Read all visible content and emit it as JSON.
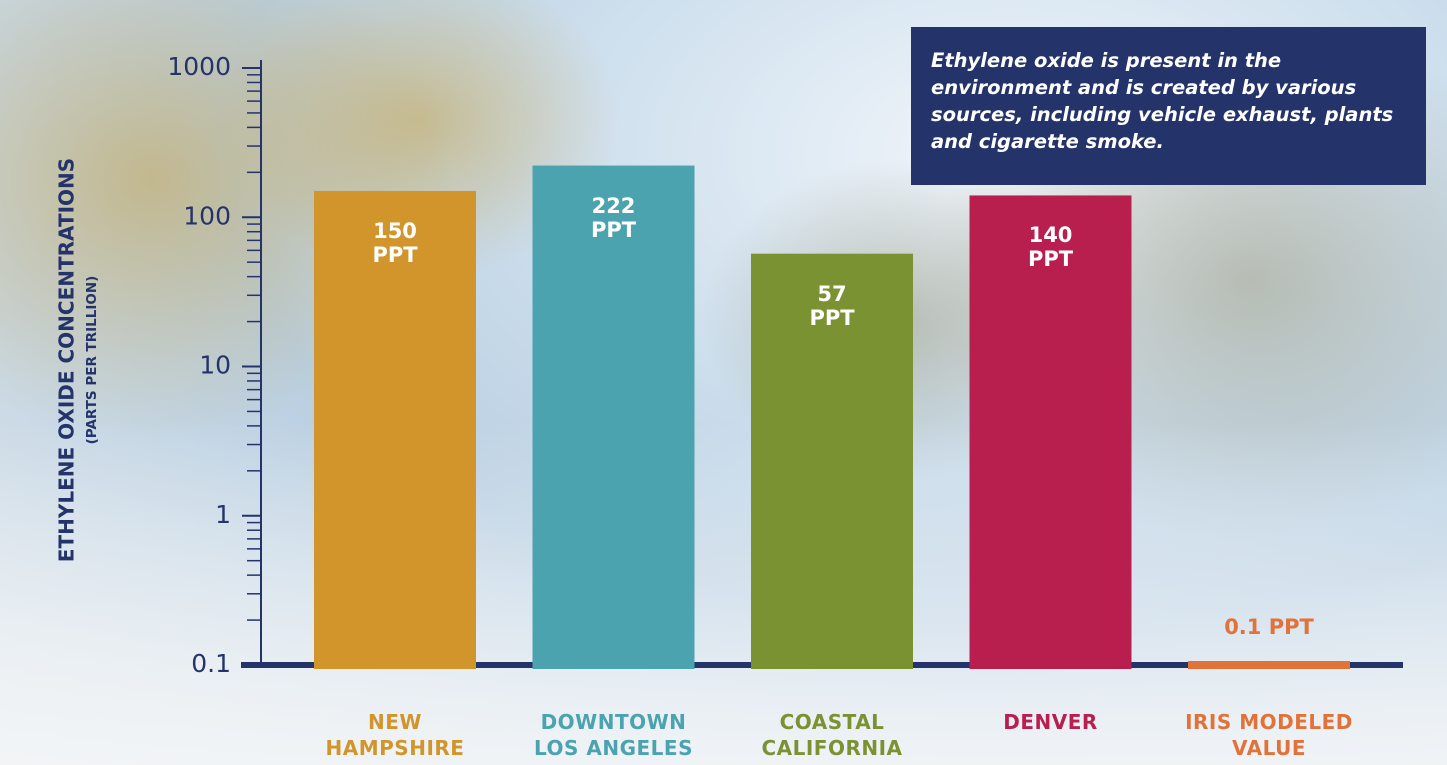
{
  "chart_data": {
    "type": "bar",
    "y_label": "ETHYLENE OXIDE CONCENTRATIONS",
    "y_sublabel": "(PARTS PER TRILLION)",
    "annotation": "Ethylene oxide is present in the environment and is created by various sources, including vehicle exhaust, plants and cigarette smoke.",
    "categories": [
      "NEW\nHAMPSHIRE",
      "DOWNTOWN\nLOS ANGELES",
      "COASTAL\nCALIFORNIA",
      "DENVER",
      "IRIS MODELED\nVALUE"
    ],
    "values": [
      150,
      222,
      57,
      140,
      0.1
    ],
    "value_labels": [
      "150\nPPT",
      "222\nPPT",
      "57\nPPT",
      "140\nPPT",
      "0.1 PPT"
    ],
    "colors": [
      "#d1952c",
      "#4ba3af",
      "#7a9232",
      "#b81f4f",
      "#e1733a"
    ],
    "log_scale": true,
    "ylim": [
      0.1,
      1000
    ],
    "yticks": [
      0.1,
      1,
      10,
      100,
      1000
    ],
    "minor_yticks": [
      0.2,
      0.3,
      0.4,
      0.5,
      0.6,
      0.7,
      0.8,
      0.9,
      2,
      3,
      4,
      5,
      6,
      7,
      8,
      9,
      20,
      30,
      40,
      50,
      60,
      70,
      80,
      90,
      200,
      300,
      400,
      500,
      600,
      700,
      800,
      900
    ],
    "grid": false
  }
}
